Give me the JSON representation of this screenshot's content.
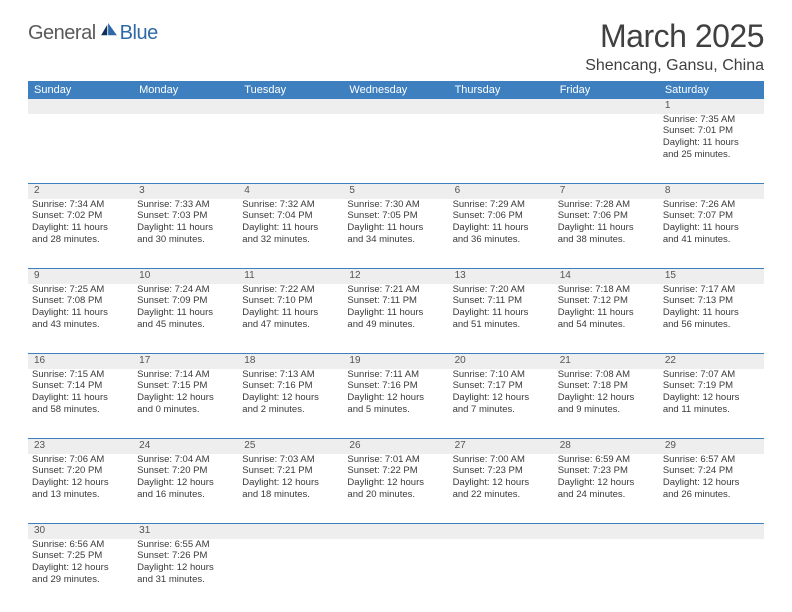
{
  "logo": {
    "part1": "General",
    "part2": "Blue"
  },
  "title": "March 2025",
  "location": "Shencang, Gansu, China",
  "colors": {
    "header_bg": "#3d7fbf",
    "header_fg": "#ffffff",
    "daynum_bg": "#eeeeee",
    "rule": "#3d7fbf",
    "text": "#3a3a3a",
    "logo_blue": "#2f6aa8"
  },
  "weekdays": [
    "Sunday",
    "Monday",
    "Tuesday",
    "Wednesday",
    "Thursday",
    "Friday",
    "Saturday"
  ],
  "weeks": [
    {
      "nums": [
        "",
        "",
        "",
        "",
        "",
        "",
        "1"
      ],
      "cells": [
        null,
        null,
        null,
        null,
        null,
        null,
        {
          "sr": "Sunrise: 7:35 AM",
          "ss": "Sunset: 7:01 PM",
          "dl1": "Daylight: 11 hours",
          "dl2": "and 25 minutes."
        }
      ]
    },
    {
      "nums": [
        "2",
        "3",
        "4",
        "5",
        "6",
        "7",
        "8"
      ],
      "cells": [
        {
          "sr": "Sunrise: 7:34 AM",
          "ss": "Sunset: 7:02 PM",
          "dl1": "Daylight: 11 hours",
          "dl2": "and 28 minutes."
        },
        {
          "sr": "Sunrise: 7:33 AM",
          "ss": "Sunset: 7:03 PM",
          "dl1": "Daylight: 11 hours",
          "dl2": "and 30 minutes."
        },
        {
          "sr": "Sunrise: 7:32 AM",
          "ss": "Sunset: 7:04 PM",
          "dl1": "Daylight: 11 hours",
          "dl2": "and 32 minutes."
        },
        {
          "sr": "Sunrise: 7:30 AM",
          "ss": "Sunset: 7:05 PM",
          "dl1": "Daylight: 11 hours",
          "dl2": "and 34 minutes."
        },
        {
          "sr": "Sunrise: 7:29 AM",
          "ss": "Sunset: 7:06 PM",
          "dl1": "Daylight: 11 hours",
          "dl2": "and 36 minutes."
        },
        {
          "sr": "Sunrise: 7:28 AM",
          "ss": "Sunset: 7:06 PM",
          "dl1": "Daylight: 11 hours",
          "dl2": "and 38 minutes."
        },
        {
          "sr": "Sunrise: 7:26 AM",
          "ss": "Sunset: 7:07 PM",
          "dl1": "Daylight: 11 hours",
          "dl2": "and 41 minutes."
        }
      ]
    },
    {
      "nums": [
        "9",
        "10",
        "11",
        "12",
        "13",
        "14",
        "15"
      ],
      "cells": [
        {
          "sr": "Sunrise: 7:25 AM",
          "ss": "Sunset: 7:08 PM",
          "dl1": "Daylight: 11 hours",
          "dl2": "and 43 minutes."
        },
        {
          "sr": "Sunrise: 7:24 AM",
          "ss": "Sunset: 7:09 PM",
          "dl1": "Daylight: 11 hours",
          "dl2": "and 45 minutes."
        },
        {
          "sr": "Sunrise: 7:22 AM",
          "ss": "Sunset: 7:10 PM",
          "dl1": "Daylight: 11 hours",
          "dl2": "and 47 minutes."
        },
        {
          "sr": "Sunrise: 7:21 AM",
          "ss": "Sunset: 7:11 PM",
          "dl1": "Daylight: 11 hours",
          "dl2": "and 49 minutes."
        },
        {
          "sr": "Sunrise: 7:20 AM",
          "ss": "Sunset: 7:11 PM",
          "dl1": "Daylight: 11 hours",
          "dl2": "and 51 minutes."
        },
        {
          "sr": "Sunrise: 7:18 AM",
          "ss": "Sunset: 7:12 PM",
          "dl1": "Daylight: 11 hours",
          "dl2": "and 54 minutes."
        },
        {
          "sr": "Sunrise: 7:17 AM",
          "ss": "Sunset: 7:13 PM",
          "dl1": "Daylight: 11 hours",
          "dl2": "and 56 minutes."
        }
      ]
    },
    {
      "nums": [
        "16",
        "17",
        "18",
        "19",
        "20",
        "21",
        "22"
      ],
      "cells": [
        {
          "sr": "Sunrise: 7:15 AM",
          "ss": "Sunset: 7:14 PM",
          "dl1": "Daylight: 11 hours",
          "dl2": "and 58 minutes."
        },
        {
          "sr": "Sunrise: 7:14 AM",
          "ss": "Sunset: 7:15 PM",
          "dl1": "Daylight: 12 hours",
          "dl2": "and 0 minutes."
        },
        {
          "sr": "Sunrise: 7:13 AM",
          "ss": "Sunset: 7:16 PM",
          "dl1": "Daylight: 12 hours",
          "dl2": "and 2 minutes."
        },
        {
          "sr": "Sunrise: 7:11 AM",
          "ss": "Sunset: 7:16 PM",
          "dl1": "Daylight: 12 hours",
          "dl2": "and 5 minutes."
        },
        {
          "sr": "Sunrise: 7:10 AM",
          "ss": "Sunset: 7:17 PM",
          "dl1": "Daylight: 12 hours",
          "dl2": "and 7 minutes."
        },
        {
          "sr": "Sunrise: 7:08 AM",
          "ss": "Sunset: 7:18 PM",
          "dl1": "Daylight: 12 hours",
          "dl2": "and 9 minutes."
        },
        {
          "sr": "Sunrise: 7:07 AM",
          "ss": "Sunset: 7:19 PM",
          "dl1": "Daylight: 12 hours",
          "dl2": "and 11 minutes."
        }
      ]
    },
    {
      "nums": [
        "23",
        "24",
        "25",
        "26",
        "27",
        "28",
        "29"
      ],
      "cells": [
        {
          "sr": "Sunrise: 7:06 AM",
          "ss": "Sunset: 7:20 PM",
          "dl1": "Daylight: 12 hours",
          "dl2": "and 13 minutes."
        },
        {
          "sr": "Sunrise: 7:04 AM",
          "ss": "Sunset: 7:20 PM",
          "dl1": "Daylight: 12 hours",
          "dl2": "and 16 minutes."
        },
        {
          "sr": "Sunrise: 7:03 AM",
          "ss": "Sunset: 7:21 PM",
          "dl1": "Daylight: 12 hours",
          "dl2": "and 18 minutes."
        },
        {
          "sr": "Sunrise: 7:01 AM",
          "ss": "Sunset: 7:22 PM",
          "dl1": "Daylight: 12 hours",
          "dl2": "and 20 minutes."
        },
        {
          "sr": "Sunrise: 7:00 AM",
          "ss": "Sunset: 7:23 PM",
          "dl1": "Daylight: 12 hours",
          "dl2": "and 22 minutes."
        },
        {
          "sr": "Sunrise: 6:59 AM",
          "ss": "Sunset: 7:23 PM",
          "dl1": "Daylight: 12 hours",
          "dl2": "and 24 minutes."
        },
        {
          "sr": "Sunrise: 6:57 AM",
          "ss": "Sunset: 7:24 PM",
          "dl1": "Daylight: 12 hours",
          "dl2": "and 26 minutes."
        }
      ]
    },
    {
      "nums": [
        "30",
        "31",
        "",
        "",
        "",
        "",
        ""
      ],
      "cells": [
        {
          "sr": "Sunrise: 6:56 AM",
          "ss": "Sunset: 7:25 PM",
          "dl1": "Daylight: 12 hours",
          "dl2": "and 29 minutes."
        },
        {
          "sr": "Sunrise: 6:55 AM",
          "ss": "Sunset: 7:26 PM",
          "dl1": "Daylight: 12 hours",
          "dl2": "and 31 minutes."
        },
        null,
        null,
        null,
        null,
        null
      ]
    }
  ]
}
